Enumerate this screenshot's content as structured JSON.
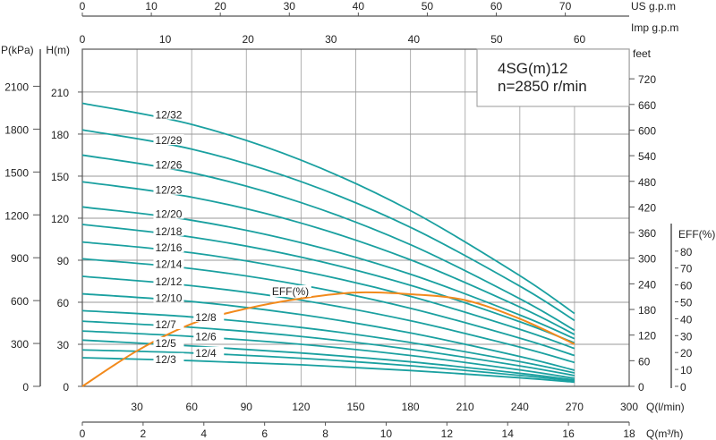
{
  "chart_data": {
    "type": "line",
    "legend_box": {
      "model": "4SG(m)12",
      "speed": "n=2850 r/min"
    },
    "x_axis": {
      "label": "Q(l/min)",
      "range": [
        0,
        300
      ],
      "ticks": [
        "30",
        "60",
        "90",
        "120",
        "150",
        "180",
        "210",
        "240",
        "270",
        "300"
      ]
    },
    "x_axis_m3h": {
      "label": "Q(m³/h)",
      "range": [
        0,
        18
      ],
      "ticks": [
        "0",
        "2",
        "4",
        "6",
        "8",
        "10",
        "12",
        "14",
        "16",
        "18"
      ]
    },
    "x_axis_us_gpm": {
      "label": "US  g.p.m",
      "ticks": [
        "0",
        "10",
        "20",
        "30",
        "40",
        "50",
        "60",
        "70"
      ]
    },
    "x_axis_imp_gpm": {
      "label": "Imp  g.p.m",
      "ticks": [
        "0",
        "10",
        "20",
        "30",
        "40",
        "50",
        "60"
      ]
    },
    "y_axis_head": {
      "label": "H(m)",
      "range": [
        0,
        210
      ],
      "ticks": [
        "0",
        "30",
        "60",
        "90",
        "120",
        "150",
        "180",
        "210"
      ]
    },
    "y_axis_pressure": {
      "label": "P(kPa)",
      "ticks": [
        "0",
        "300",
        "600",
        "900",
        "1200",
        "1500",
        "1800",
        "2100"
      ]
    },
    "y_axis_feet": {
      "label": "feet",
      "ticks": [
        "0",
        "60",
        "120",
        "180",
        "240",
        "300",
        "360",
        "420",
        "480",
        "540",
        "600",
        "660",
        "720"
      ]
    },
    "y_axis_eff": {
      "label": "EFF(%)",
      "ticks": [
        "0",
        "10",
        "20",
        "30",
        "40",
        "50",
        "60",
        "70",
        "80"
      ]
    },
    "grid": true,
    "q_points": [
      0,
      60,
      120,
      180,
      240,
      270
    ],
    "series": [
      {
        "name": "12/32",
        "head": [
          202,
          186.9,
          161.4,
          125.4,
          79,
          52
        ]
      },
      {
        "name": "12/29",
        "head": [
          183,
          169.3,
          146.1,
          113.5,
          71.5,
          47
        ]
      },
      {
        "name": "12/26",
        "head": [
          165,
          152.4,
          131.1,
          101.1,
          62.5,
          40
        ]
      },
      {
        "name": "12/23",
        "head": [
          146,
          135,
          116.5,
          90.3,
          56.6,
          37
        ]
      },
      {
        "name": "12/20",
        "head": [
          128,
          118.5,
          102.5,
          80,
          50.9,
          34
        ]
      },
      {
        "name": "12/18",
        "head": [
          115.5,
          106.5,
          92.2,
          72.1,
          46.1,
          31
        ]
      },
      {
        "name": "12/16",
        "head": [
          103,
          95.3,
          82.4,
          64.2,
          40.7,
          27
        ]
      },
      {
        "name": "12/14",
        "head": [
          91,
          84,
          72.3,
          55.7,
          34.4,
          22
        ]
      },
      {
        "name": "12/12",
        "head": [
          78.5,
          71.8,
          61.5,
          46.8,
          28,
          17
        ]
      },
      {
        "name": "12/10",
        "head": [
          66,
          60.5,
          51.2,
          38.1,
          21.3,
          11.5
        ]
      },
      {
        "name": "12/8",
        "head": [
          54,
          49.5,
          42,
          31.3,
          17.6,
          9.6
        ]
      },
      {
        "name": "12/7",
        "head": [
          46.5,
          42.1,
          35.6,
          26.4,
          14.6,
          7.7
        ]
      },
      {
        "name": "12/6",
        "head": [
          39.5,
          35.6,
          30,
          22,
          11.7,
          5.7
        ]
      },
      {
        "name": "12/5",
        "head": [
          33,
          28.8,
          23.8,
          17.5,
          9.3,
          4.5
        ]
      },
      {
        "name": "12/4",
        "head": [
          26,
          23.8,
          20,
          14.7,
          7.8,
          3.8
        ]
      },
      {
        "name": "12/3",
        "head": [
          20.4,
          18.3,
          15.4,
          11.3,
          6.1,
          3
        ]
      }
    ],
    "efficiency": {
      "name": "EFF(%)",
      "q": [
        0,
        30,
        60,
        90,
        120,
        150,
        180,
        210,
        240,
        270
      ],
      "values": [
        0,
        21,
        37,
        46,
        52,
        55.5,
        54.5,
        51,
        40,
        25
      ]
    },
    "colors": {
      "head": "#1aa0a0",
      "efficiency": "#f28a1c",
      "grid": "#9a9a9a",
      "axis": "#555555"
    }
  }
}
